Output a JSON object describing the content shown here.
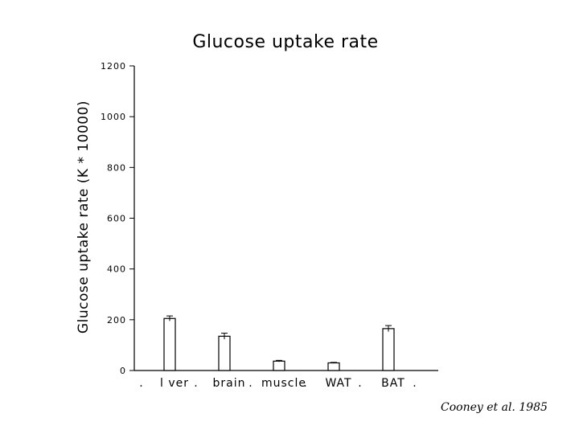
{
  "chart_data": {
    "type": "bar",
    "title": "Glucose  uptake  rate",
    "ylabel": "Glucose  uptake  rate  (K  *  10000)",
    "xlabel": "",
    "categories": [
      "l ver",
      "brain",
      "muscle",
      "WAT",
      "BAT"
    ],
    "values": [
      205,
      135,
      37,
      30,
      165
    ],
    "errors": [
      10,
      12,
      3,
      2,
      12
    ],
    "ylim": [
      0,
      1200
    ],
    "yticks": [
      "0",
      "200",
      "400",
      "600",
      "800",
      "1000",
      "1200"
    ],
    "separator_labels": [
      ".",
      ".",
      ".",
      ".",
      ".",
      "."
    ],
    "grid": false,
    "citation": "Cooney et al. 1985"
  }
}
